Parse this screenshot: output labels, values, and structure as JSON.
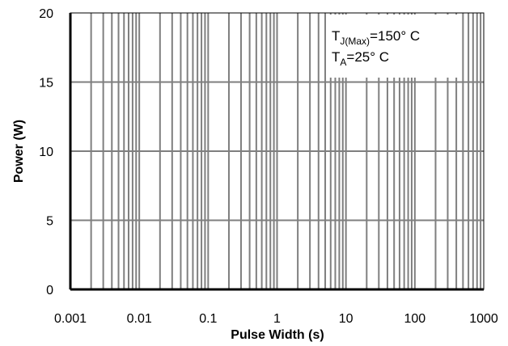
{
  "chart_data": {
    "type": "line",
    "title": "",
    "xlabel": "Pulse Width (s)",
    "ylabel": "Power (W)",
    "xscale": "log",
    "xlim": [
      0.001,
      1000
    ],
    "ylim": [
      0,
      20
    ],
    "x_ticks": [
      "0.001",
      "0.01",
      "0.1",
      "1",
      "10",
      "100",
      "1000"
    ],
    "y_ticks": [
      "0",
      "5",
      "10",
      "15",
      "20"
    ],
    "grid": true,
    "series": [
      {
        "x": [],
        "y": []
      }
    ],
    "annotations": {
      "line1": {
        "main": "T",
        "sub": "J(Max)",
        "rest": "=150°  C"
      },
      "line2": {
        "main": "T",
        "sub": "A",
        "rest": "=25°  C"
      }
    }
  }
}
